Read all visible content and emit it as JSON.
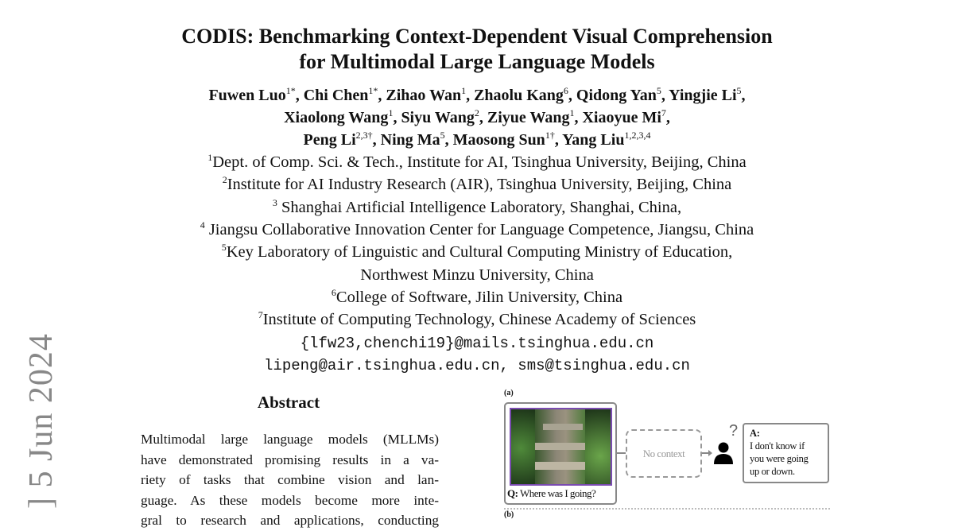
{
  "stamp": "] 5 Jun 2024",
  "title": [
    "CODIS: Benchmarking Context-Dependent Visual Comprehension",
    "for Multimodal Large Language Models"
  ],
  "authors": [
    [
      {
        "n": "Fuwen Luo",
        "s": "1*"
      },
      {
        "n": "Chi Chen",
        "s": "1*"
      },
      {
        "n": "Zihao Wan",
        "s": "1"
      },
      {
        "n": "Zhaolu Kang",
        "s": "6"
      },
      {
        "n": "Qidong Yan",
        "s": "5"
      },
      {
        "n": "Yingjie Li",
        "s": "5"
      }
    ],
    [
      {
        "n": "Xiaolong Wang",
        "s": "1"
      },
      {
        "n": "Siyu Wang",
        "s": "2"
      },
      {
        "n": "Ziyue Wang",
        "s": "1"
      },
      {
        "n": "Xiaoyue Mi",
        "s": "7"
      }
    ],
    [
      {
        "n": "Peng Li",
        "s": "2,3†"
      },
      {
        "n": "Ning Ma",
        "s": "5"
      },
      {
        "n": "Maosong Sun",
        "s": "1†"
      },
      {
        "n": "Yang Liu",
        "s": "1,2,3,4"
      }
    ]
  ],
  "affiliations": [
    {
      "s": "1",
      "t": "Dept. of Comp. Sci. & Tech., Institute for AI, Tsinghua University, Beijing, China"
    },
    {
      "s": "2",
      "t": "Institute for AI Industry Research (AIR), Tsinghua University, Beijing, China"
    },
    {
      "s": "3",
      "t": " Shanghai Artificial Intelligence Laboratory, Shanghai, China,"
    },
    {
      "s": "4",
      "t": " Jiangsu Collaborative Innovation Center for Language Competence, Jiangsu, China"
    },
    {
      "s": "5",
      "t": "Key Laboratory of Linguistic and Cultural Computing Ministry of Education,"
    },
    {
      "s": "",
      "t": "Northwest Minzu University, China"
    },
    {
      "s": "6",
      "t": "College of Software, Jilin University, China"
    },
    {
      "s": "7",
      "t": "Institute of Computing Technology, Chinese Academy of Sciences"
    }
  ],
  "emails": [
    "{lfw23,chenchi19}@mails.tsinghua.edu.cn",
    "lipeng@air.tsinghua.edu.cn, sms@tsinghua.edu.cn"
  ],
  "abstract": {
    "heading": "Abstract",
    "lines": [
      "Multimodal large language models (MLLMs)",
      "have demonstrated promising results in a va-",
      "riety of tasks that combine vision and lan-",
      "guage.  As these models become more inte-",
      "gral to research and applications, conducting"
    ]
  },
  "figure": {
    "label_a": "(a)",
    "label_b": "(b)",
    "q_prefix": "Q:",
    "question": "Where was I going?",
    "context": "No context",
    "question_mark": "?",
    "a_prefix": "A:",
    "answer": [
      "I don't know if",
      "you were going",
      "up or down."
    ],
    "image_border_color": "#7a4bb0"
  }
}
